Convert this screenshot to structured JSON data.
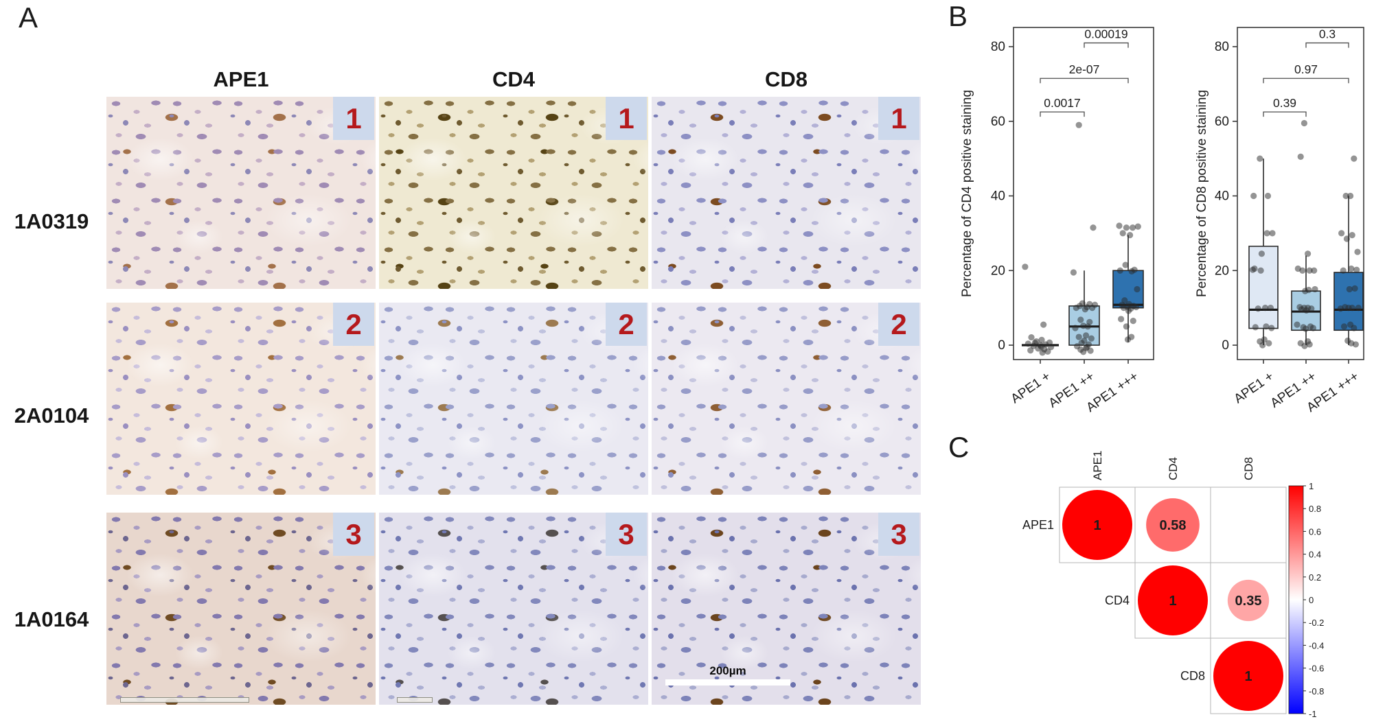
{
  "figure": {
    "panel_a": {
      "label": "A",
      "column_headers": [
        "APE1",
        "CD4",
        "CD8"
      ],
      "rows": [
        {
          "sample": "1A0319",
          "badge": "1"
        },
        {
          "sample": "2A0104",
          "badge": "2"
        },
        {
          "sample": "1A0164",
          "badge": "3"
        }
      ],
      "badge_color": "#cdd9ec",
      "badge_text_color": "#b5191c",
      "scalebar": {
        "label": "200µm"
      },
      "tiles": [
        {
          "marker": "APE1",
          "sample": "1A0319",
          "palette": {
            "bg": "#f1e5e0",
            "na": "#a08bb4",
            "nb": "#c4aec6",
            "nc": "#8d88b6",
            "br": "#a3714a"
          }
        },
        {
          "marker": "CD4",
          "sample": "1A0319",
          "palette": {
            "bg": "#efe9d2",
            "na": "#857044",
            "nb": "#b3a173",
            "nc": "#6f5b30",
            "br": "#564314"
          }
        },
        {
          "marker": "CD8",
          "sample": "1A0319",
          "palette": {
            "bg": "#e9e7ef",
            "na": "#8d90c4",
            "nb": "#b3b1d6",
            "nc": "#7a7eb8",
            "br": "#7c4b20"
          }
        },
        {
          "marker": "APE1",
          "sample": "2A0104",
          "palette": {
            "bg": "#f3e7de",
            "na": "#a79cc8",
            "nb": "#c6bcda",
            "nc": "#9a8fc0",
            "br": "#a2703f"
          }
        },
        {
          "marker": "CD4",
          "sample": "2A0104",
          "palette": {
            "bg": "#eae9f2",
            "na": "#9aa0cb",
            "nb": "#bfc2de",
            "nc": "#8d93c5",
            "br": "#9c7a50"
          }
        },
        {
          "marker": "CD8",
          "sample": "2A0104",
          "palette": {
            "bg": "#ece9f1",
            "na": "#979cc9",
            "nb": "#c0c0dc",
            "nc": "#8b90c2",
            "br": "#8f5f34"
          }
        },
        {
          "marker": "APE1",
          "sample": "1A0164",
          "palette": {
            "bg": "#e8d7cd",
            "na": "#8379ae",
            "nb": "#a89bc2",
            "nc": "#6d668f",
            "br": "#6f4b22"
          }
        },
        {
          "marker": "CD4",
          "sample": "1A0164",
          "palette": {
            "bg": "#e3e1ed",
            "na": "#8288bc",
            "nb": "#abaed2",
            "nc": "#7078b2",
            "br": "#55504f"
          }
        },
        {
          "marker": "CD8",
          "sample": "1A0164",
          "palette": {
            "bg": "#e3dfeb",
            "na": "#7d83b9",
            "nb": "#a7aace",
            "nc": "#6b72ae",
            "br": "#6b441d"
          }
        }
      ]
    },
    "panel_b": {
      "label": "B"
    },
    "panel_c": {
      "label": "C"
    }
  },
  "chart_data": [
    {
      "type": "box",
      "ylabel": "Percentage of CD4 positive staining",
      "categories": [
        "APE1 +",
        "APE1 ++",
        "APE1 +++"
      ],
      "ylim": [
        -4,
        85
      ],
      "yticks": [
        0,
        20,
        40,
        60,
        80
      ],
      "grid": false,
      "box_colors": [
        "#dfe8f4",
        "#a9cde3",
        "#2e72af"
      ],
      "boxes": [
        {
          "q1": 0,
          "median": 0,
          "q3": 0,
          "whisker_low": 0,
          "whisker_high": 0
        },
        {
          "q1": 0,
          "median": 5,
          "q3": 10.5,
          "whisker_low": 0,
          "whisker_high": 20
        },
        {
          "q1": 10,
          "median": 10.8,
          "q3": 20,
          "whisker_low": 0.8,
          "whisker_high": 29.5
        }
      ],
      "points": [
        [
          [
            -0.85,
            21
          ],
          [
            0.18,
            5.5
          ],
          [
            -0.5,
            2.1
          ],
          [
            0.08,
            1.4
          ],
          [
            -0.22,
            1.0
          ],
          [
            0.52,
            0.7
          ],
          [
            -0.68,
            0.4
          ],
          [
            0.3,
            0.2
          ],
          [
            0,
            0
          ],
          [
            -0.38,
            -0.2
          ],
          [
            0.6,
            -0.5
          ],
          [
            -0.12,
            -0.9
          ],
          [
            0.22,
            -1.1
          ],
          [
            -0.55,
            -1.4
          ],
          [
            0.42,
            -1.7
          ],
          [
            0.12,
            -2.0
          ],
          [
            -0.3,
            0.6
          ],
          [
            0.05,
            -0.4
          ]
        ],
        [
          [
            -0.3,
            59
          ],
          [
            0.5,
            31.5
          ],
          [
            -0.6,
            19.5
          ],
          [
            -0.1,
            11.2
          ],
          [
            0.3,
            11
          ],
          [
            0.6,
            10.8
          ],
          [
            -0.25,
            10.5
          ],
          [
            0.15,
            10.2
          ],
          [
            0.45,
            10
          ],
          [
            -0.45,
            10
          ],
          [
            0.05,
            9.6
          ],
          [
            -0.2,
            6.8
          ],
          [
            0.3,
            6.2
          ],
          [
            -0.05,
            5.2
          ],
          [
            0.2,
            5
          ],
          [
            -0.5,
            4.6
          ],
          [
            0.1,
            2.6
          ],
          [
            -0.3,
            2.2
          ],
          [
            0.4,
            1.8
          ],
          [
            0,
            1.2
          ],
          [
            -0.15,
            0.6
          ],
          [
            0.25,
            0.2
          ],
          [
            -0.4,
            -0.3
          ],
          [
            0.1,
            -0.8
          ],
          [
            -0.2,
            -1.2
          ],
          [
            0.35,
            -1.5
          ],
          [
            -0.05,
            -1.8
          ],
          [
            0.15,
            -0.5
          ]
        ],
        [
          [
            -0.5,
            32
          ],
          [
            -0.1,
            31.5
          ],
          [
            0.25,
            31.5
          ],
          [
            0.55,
            31.8
          ],
          [
            -0.3,
            30
          ],
          [
            0.1,
            29.5
          ],
          [
            -0.15,
            21.5
          ],
          [
            0.35,
            20.2
          ],
          [
            -0.45,
            20
          ],
          [
            0.2,
            19.8
          ],
          [
            0.5,
            15
          ],
          [
            -0.2,
            12
          ],
          [
            0.05,
            11
          ],
          [
            -0.35,
            10.8
          ],
          [
            0.3,
            10.5
          ],
          [
            -0.05,
            10.3
          ],
          [
            0.45,
            10.2
          ],
          [
            -0.25,
            10
          ],
          [
            0.15,
            9.8
          ],
          [
            0.02,
            9.2
          ],
          [
            -0.4,
            7
          ],
          [
            0.28,
            6.5
          ],
          [
            -0.1,
            5
          ],
          [
            0.18,
            2.2
          ],
          [
            -0.02,
            1.5
          ]
        ]
      ],
      "comparisons": [
        {
          "groups": [
            0,
            1
          ],
          "label": "0.0017",
          "height": 62.5
        },
        {
          "groups": [
            0,
            2
          ],
          "label": "2e-07",
          "height": 71.5
        },
        {
          "groups": [
            1,
            2
          ],
          "label": "0.00019",
          "height": 81
        }
      ]
    },
    {
      "type": "box",
      "ylabel": "Percentage of CD8 positive staining",
      "categories": [
        "APE1 +",
        "APE1 ++",
        "APE1 +++"
      ],
      "ylim": [
        -4,
        85
      ],
      "yticks": [
        0,
        20,
        40,
        60,
        80
      ],
      "grid": false,
      "box_colors": [
        "#dfe8f4",
        "#a9cde3",
        "#2e72af"
      ],
      "boxes": [
        {
          "q1": 4.5,
          "median": 9.5,
          "q3": 26.5,
          "whisker_low": 0,
          "whisker_high": 50
        },
        {
          "q1": 4,
          "median": 9,
          "q3": 14.5,
          "whisker_low": 0,
          "whisker_high": 24
        },
        {
          "q1": 4,
          "median": 9.5,
          "q3": 19.5,
          "whisker_low": 0,
          "whisker_high": 40
        }
      ],
      "points": [
        [
          [
            -0.2,
            50
          ],
          [
            -0.55,
            40
          ],
          [
            0.25,
            40
          ],
          [
            0.5,
            30
          ],
          [
            0.2,
            30
          ],
          [
            -0.6,
            20.2
          ],
          [
            -0.1,
            24.5
          ],
          [
            -0.5,
            20.5
          ],
          [
            -0.15,
            20
          ],
          [
            0.1,
            10
          ],
          [
            0.4,
            10
          ],
          [
            -0.3,
            9.8
          ],
          [
            0.15,
            5
          ],
          [
            -0.45,
            4.8
          ],
          [
            0.45,
            4.6
          ],
          [
            0.05,
            1.5
          ],
          [
            -0.2,
            1
          ],
          [
            0.3,
            0.5
          ],
          [
            -0.05,
            0
          ]
        ],
        [
          [
            -0.1,
            59.5
          ],
          [
            -0.3,
            50.5
          ],
          [
            0.1,
            24.5
          ],
          [
            -0.45,
            20.5
          ],
          [
            0.2,
            20
          ],
          [
            0.45,
            20
          ],
          [
            -0.2,
            20
          ],
          [
            0.5,
            15
          ],
          [
            0.15,
            14.8
          ],
          [
            -0.05,
            14.5
          ],
          [
            -0.35,
            10.2
          ],
          [
            -0.1,
            10
          ],
          [
            0.1,
            10
          ],
          [
            0.3,
            9.8
          ],
          [
            -0.25,
            9.6
          ],
          [
            0.02,
            9.3
          ],
          [
            -0.5,
            5.5
          ],
          [
            0.25,
            5
          ],
          [
            -0.15,
            4.8
          ],
          [
            0.4,
            4.6
          ],
          [
            -0.02,
            4.4
          ],
          [
            0.1,
            1
          ],
          [
            -0.3,
            0.5
          ],
          [
            0.2,
            0.2
          ],
          [
            -0.08,
            -0.2
          ]
        ],
        [
          [
            0.3,
            50
          ],
          [
            -0.15,
            40
          ],
          [
            0.1,
            40
          ],
          [
            -0.4,
            30
          ],
          [
            0.2,
            29.5
          ],
          [
            -0.1,
            28.5
          ],
          [
            0.5,
            25
          ],
          [
            0.15,
            20.5
          ],
          [
            -0.3,
            20
          ],
          [
            0.45,
            20.2
          ],
          [
            0.05,
            15
          ],
          [
            0.35,
            15.2
          ],
          [
            -0.2,
            10.2
          ],
          [
            0,
            10
          ],
          [
            0.2,
            10
          ],
          [
            0.55,
            10
          ],
          [
            -0.45,
            9.8
          ],
          [
            0.1,
            5.5
          ],
          [
            -0.25,
            5
          ],
          [
            0.3,
            4.6
          ],
          [
            -0.05,
            1.2
          ],
          [
            0.15,
            0.5
          ],
          [
            0.4,
            0.2
          ]
        ]
      ],
      "comparisons": [
        {
          "groups": [
            0,
            1
          ],
          "label": "0.39",
          "height": 62.5
        },
        {
          "groups": [
            0,
            2
          ],
          "label": "0.97",
          "height": 71.5
        },
        {
          "groups": [
            1,
            2
          ],
          "label": "0.3",
          "height": 81
        }
      ]
    },
    {
      "type": "correlation-bubble",
      "labels": [
        "APE1",
        "CD4",
        "CD8"
      ],
      "matrix": [
        [
          1,
          0.58,
          null
        ],
        [
          null,
          1,
          0.35
        ],
        [
          null,
          null,
          1
        ]
      ],
      "shown_values": [
        "1",
        "0.58",
        "0.35"
      ],
      "colorbar_ticks": [
        1,
        0.8,
        0.6,
        0.4,
        0.2,
        0,
        -0.2,
        -0.4,
        -0.6,
        -0.8,
        -1
      ],
      "positive_color": "#ff0000",
      "negative_color": "#0000ff",
      "grid_color": "#b5b5b5"
    }
  ]
}
